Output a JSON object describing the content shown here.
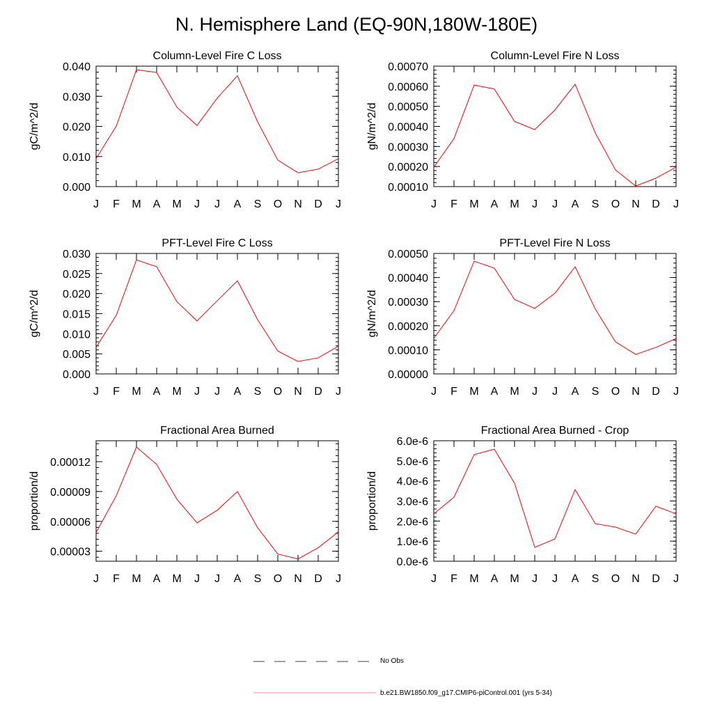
{
  "title": "N. Hemisphere Land (EQ-90N,180W-180E)",
  "legend": {
    "items": [
      {
        "label": "No Obs",
        "color": "#000000",
        "style": "dashed"
      },
      {
        "label": "b.e21.BW1850.f09_g17.CMIP6-piControl.001 (yrs 5-34)",
        "color": "#ff0000",
        "style": "solid"
      }
    ],
    "placement": "bottom-center"
  },
  "chart_data": [
    {
      "type": "line",
      "title": "Column-Level Fire C Loss",
      "ylabel": "gC/m^2/d",
      "xlabel": "",
      "categories": [
        "J",
        "F",
        "M",
        "A",
        "M",
        "J",
        "J",
        "A",
        "S",
        "O",
        "N",
        "D",
        "J"
      ],
      "ylim": [
        0,
        0.04
      ],
      "yticks": [
        0,
        0.01,
        0.02,
        0.03,
        0.04
      ],
      "yticklabels": [
        "0.000",
        "0.010",
        "0.020",
        "0.030",
        "0.040"
      ],
      "series": [
        {
          "color": "#ff0000",
          "values": [
            0.0093,
            0.0201,
            0.0388,
            0.0379,
            0.0264,
            0.0203,
            0.0294,
            0.0368,
            0.0215,
            0.0088,
            0.0046,
            0.0058,
            0.0093
          ]
        }
      ]
    },
    {
      "type": "line",
      "title": "Column-Level Fire N Loss",
      "ylabel": "gN/m^2/d",
      "xlabel": "",
      "categories": [
        "J",
        "F",
        "M",
        "A",
        "M",
        "J",
        "J",
        "A",
        "S",
        "O",
        "N",
        "D",
        "J"
      ],
      "ylim": [
        0.0001,
        0.0007
      ],
      "yticks": [
        0.0001,
        0.0002,
        0.0003,
        0.0004,
        0.0005,
        0.0006,
        0.0007
      ],
      "yticklabels": [
        "0.00010",
        "0.00020",
        "0.00030",
        "0.00040",
        "0.00050",
        "0.00060",
        "0.00070"
      ],
      "series": [
        {
          "color": "#ff0000",
          "values": [
            0.000197,
            0.000339,
            0.000606,
            0.000586,
            0.000425,
            0.000384,
            0.000482,
            0.00061,
            0.000367,
            0.000183,
            0.000103,
            0.000142,
            0.000197
          ]
        }
      ]
    },
    {
      "type": "line",
      "title": "PFT-Level Fire C Loss",
      "ylabel": "gC/m^2/d",
      "xlabel": "",
      "categories": [
        "J",
        "F",
        "M",
        "A",
        "M",
        "J",
        "J",
        "A",
        "S",
        "O",
        "N",
        "D",
        "J"
      ],
      "ylim": [
        0,
        0.03
      ],
      "yticks": [
        0,
        0.005,
        0.01,
        0.015,
        0.02,
        0.025,
        0.03
      ],
      "yticklabels": [
        "0.000",
        "0.005",
        "0.010",
        "0.015",
        "0.020",
        "0.025",
        "0.030"
      ],
      "series": [
        {
          "color": "#ff0000",
          "values": [
            0.0066,
            0.0146,
            0.0284,
            0.0267,
            0.018,
            0.0132,
            0.0182,
            0.0232,
            0.0135,
            0.0057,
            0.0031,
            0.004,
            0.0069
          ]
        }
      ]
    },
    {
      "type": "line",
      "title": "PFT-Level Fire N Loss",
      "ylabel": "gN/m^2/d",
      "xlabel": "",
      "categories": [
        "J",
        "F",
        "M",
        "A",
        "M",
        "J",
        "J",
        "A",
        "S",
        "O",
        "N",
        "D",
        "J"
      ],
      "ylim": [
        0,
        0.0005
      ],
      "yticks": [
        0,
        0.0001,
        0.0002,
        0.0003,
        0.0004,
        0.0005
      ],
      "yticklabels": [
        "0.00000",
        "0.00010",
        "0.00020",
        "0.00030",
        "0.00040",
        "0.00050"
      ],
      "series": [
        {
          "color": "#ff0000",
          "values": [
            0.000147,
            0.000263,
            0.000468,
            0.000439,
            0.000309,
            0.000272,
            0.000335,
            0.000445,
            0.000269,
            0.000133,
            8.1e-05,
            0.00011,
            0.000147
          ]
        }
      ]
    },
    {
      "type": "line",
      "title": "Fractional Area Burned",
      "ylabel": "proportion/d",
      "xlabel": "",
      "categories": [
        "J",
        "F",
        "M",
        "A",
        "M",
        "J",
        "J",
        "A",
        "S",
        "O",
        "N",
        "D",
        "J"
      ],
      "ylim": [
        2e-05,
        0.000141
      ],
      "yticks": [
        3e-05,
        6e-05,
        9e-05,
        0.00012
      ],
      "yticklabels": [
        "0.00003",
        "0.00006",
        "0.00009",
        "0.00012"
      ],
      "series": [
        {
          "color": "#ff0000",
          "values": [
            4.88e-05,
            8.58e-05,
            0.0001347,
            0.0001172,
            8.23e-05,
            5.86e-05,
            7.12e-05,
            9e-05,
            5.37e-05,
            2.72e-05,
            2.23e-05,
            3.35e-05,
            4.95e-05
          ]
        }
      ]
    },
    {
      "type": "line",
      "title": "Fractional Area Burned - Crop",
      "ylabel": "proportion/d",
      "xlabel": "",
      "categories": [
        "J",
        "F",
        "M",
        "A",
        "M",
        "J",
        "J",
        "A",
        "S",
        "O",
        "N",
        "D",
        "J"
      ],
      "ylim": [
        0,
        6e-06
      ],
      "yticks": [
        0,
        1e-06,
        2e-06,
        3e-06,
        4e-06,
        5e-06,
        6e-06
      ],
      "yticklabels": [
        "0.0e-6",
        "1.0e-6",
        "2.0e-6",
        "3.0e-6",
        "4.0e-6",
        "5.0e-6",
        "6.0e-6"
      ],
      "series": [
        {
          "color": "#ff0000",
          "values": [
            2.36e-06,
            3.19e-06,
            5.31e-06,
            5.58e-06,
            3.88e-06,
            6.9e-07,
            1.11e-06,
            3.57e-06,
            1.87e-06,
            1.7e-06,
            1.35e-06,
            2.74e-06,
            2.36e-06
          ]
        }
      ]
    }
  ]
}
